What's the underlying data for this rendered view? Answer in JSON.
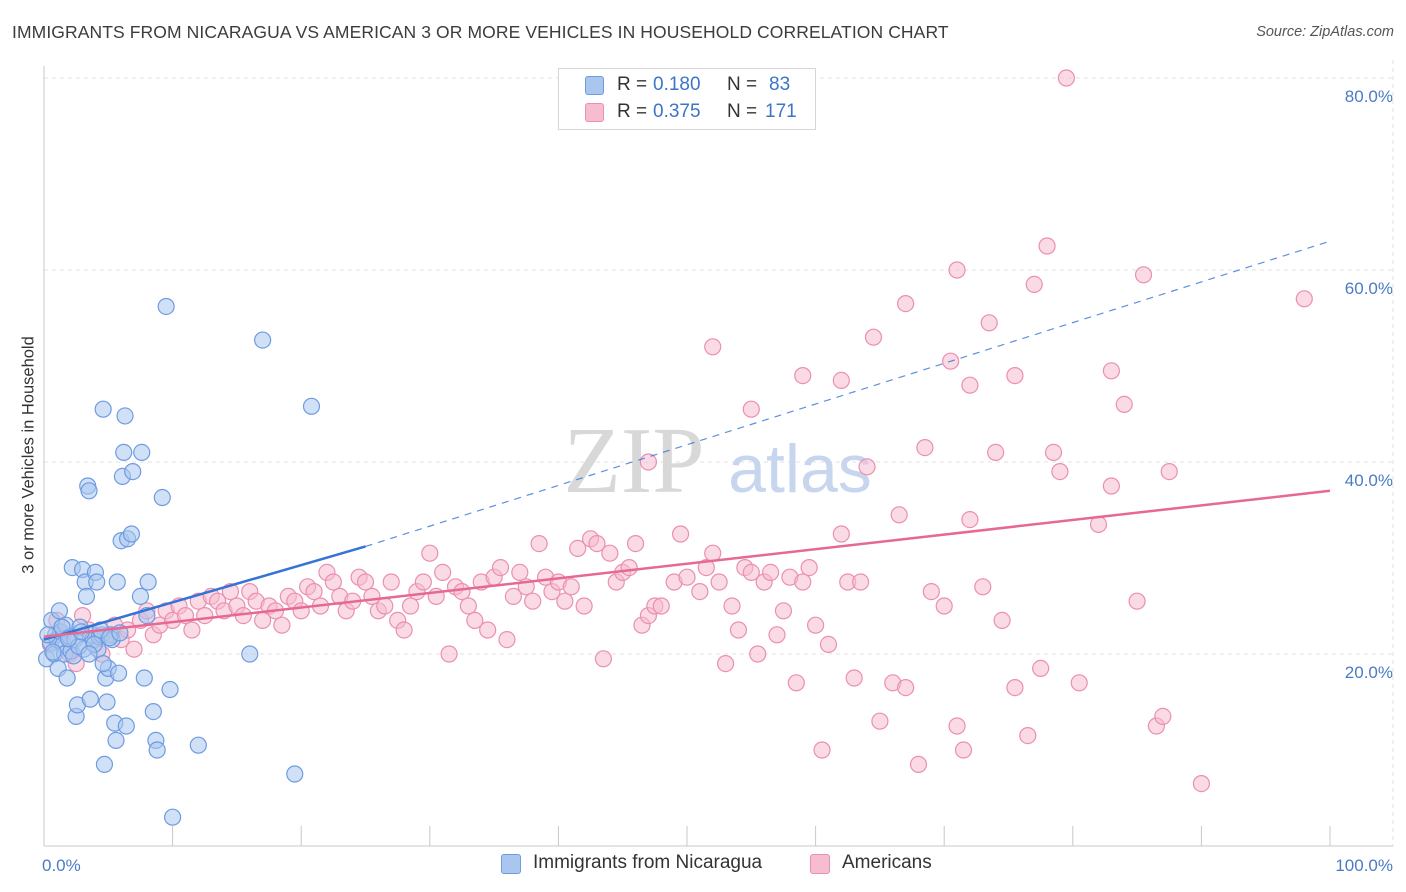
{
  "title": "IMMIGRANTS FROM NICARAGUA VS AMERICAN 3 OR MORE VEHICLES IN HOUSEHOLD CORRELATION CHART",
  "source": "Source: ZipAtlas.com",
  "watermark": {
    "zip": "ZIP",
    "atlas": "atlas"
  },
  "legend": {
    "rows": [
      {
        "r_label": "R =",
        "r_value": "0.180",
        "n_label": "N =",
        "n_value": "83"
      },
      {
        "r_label": "R =",
        "r_value": "0.375",
        "n_label": "N =",
        "n_value": "171"
      }
    ]
  },
  "bottom_legend": {
    "items": [
      {
        "label": "Immigrants from Nicaragua"
      },
      {
        "label": "Americans"
      }
    ]
  },
  "colors": {
    "blue_fill": "#a9c6ef",
    "blue_stroke": "#6f9be0",
    "blue_line": "#3574d4",
    "pink_fill": "#f6bcd0",
    "pink_stroke": "#eb8fb0",
    "pink_line": "#e66895",
    "tick_text": "#4a7cc5",
    "grid": "#e2e2e2"
  },
  "chart_data": {
    "type": "scatter",
    "title": "IMMIGRANTS FROM NICARAGUA VS AMERICAN 3 OR MORE VEHICLES IN HOUSEHOLD CORRELATION CHART",
    "xlabel": "",
    "ylabel": "3 or more Vehicles in Household",
    "xlim": [
      0,
      100
    ],
    "ylim": [
      0,
      80
    ],
    "x_tick_labels": [
      "0.0%",
      "100.0%"
    ],
    "y_tick_labels": [
      "20.0%",
      "40.0%",
      "60.0%",
      "80.0%"
    ],
    "y_ticks": [
      20,
      40,
      60,
      80
    ],
    "grid": true,
    "legend_position": "top-center",
    "series": [
      {
        "name": "Immigrants from Nicaragua",
        "r": 0.18,
        "n": 83,
        "trend": {
          "x0": 0,
          "y0": 21.5,
          "x1": 25,
          "y1": 31.2,
          "x_dash_end": 100,
          "y_dash_end": 63
        },
        "points": [
          [
            0.2,
            19.5
          ],
          [
            0.5,
            21.2
          ],
          [
            0.6,
            23.5
          ],
          [
            0.8,
            20.0
          ],
          [
            0.9,
            22.0
          ],
          [
            1.0,
            21.5
          ],
          [
            1.1,
            18.5
          ],
          [
            1.2,
            24.5
          ],
          [
            1.3,
            22.3
          ],
          [
            1.5,
            21.0
          ],
          [
            1.6,
            20.0
          ],
          [
            1.7,
            23.0
          ],
          [
            1.8,
            17.5
          ],
          [
            2.0,
            21.8
          ],
          [
            2.1,
            20.3
          ],
          [
            2.2,
            29.0
          ],
          [
            2.3,
            19.8
          ],
          [
            2.4,
            21.5
          ],
          [
            2.5,
            13.5
          ],
          [
            2.6,
            14.7
          ],
          [
            2.8,
            22.8
          ],
          [
            3.0,
            28.8
          ],
          [
            3.1,
            20.5
          ],
          [
            3.2,
            27.5
          ],
          [
            3.3,
            26.0
          ],
          [
            3.4,
            37.5
          ],
          [
            3.5,
            37.0
          ],
          [
            3.6,
            15.3
          ],
          [
            3.7,
            22.0
          ],
          [
            3.8,
            21.5
          ],
          [
            4.0,
            28.5
          ],
          [
            4.1,
            27.5
          ],
          [
            4.2,
            20.5
          ],
          [
            4.3,
            21.8
          ],
          [
            4.5,
            22.0
          ],
          [
            4.6,
            45.5
          ],
          [
            4.7,
            8.5
          ],
          [
            4.8,
            17.5
          ],
          [
            4.9,
            15.0
          ],
          [
            5.0,
            18.5
          ],
          [
            5.2,
            22.0
          ],
          [
            5.3,
            21.5
          ],
          [
            5.5,
            12.8
          ],
          [
            5.6,
            11.0
          ],
          [
            5.7,
            27.5
          ],
          [
            5.8,
            18.0
          ],
          [
            6.0,
            31.8
          ],
          [
            6.1,
            38.5
          ],
          [
            6.2,
            41.0
          ],
          [
            6.3,
            44.8
          ],
          [
            6.4,
            12.5
          ],
          [
            6.5,
            32.0
          ],
          [
            6.8,
            32.5
          ],
          [
            6.9,
            39.0
          ],
          [
            7.5,
            26.0
          ],
          [
            7.6,
            41.0
          ],
          [
            7.8,
            17.5
          ],
          [
            8.0,
            24.0
          ],
          [
            8.1,
            27.5
          ],
          [
            8.5,
            14.0
          ],
          [
            8.7,
            11.0
          ],
          [
            8.8,
            10.0
          ],
          [
            9.2,
            36.3
          ],
          [
            9.8,
            16.3
          ],
          [
            9.5,
            56.2
          ],
          [
            10.0,
            3.0
          ],
          [
            12.0,
            10.5
          ],
          [
            16.0,
            20.0
          ],
          [
            17.0,
            52.7
          ],
          [
            19.5,
            7.5
          ],
          [
            20.8,
            45.8
          ],
          [
            1.4,
            22.8
          ],
          [
            2.7,
            20.8
          ],
          [
            3.9,
            21.0
          ],
          [
            4.4,
            22.5
          ],
          [
            0.3,
            22.0
          ],
          [
            0.7,
            20.2
          ],
          [
            1.9,
            21.6
          ],
          [
            2.9,
            22.3
          ],
          [
            5.1,
            21.7
          ],
          [
            3.5,
            20.0
          ],
          [
            4.6,
            19.0
          ],
          [
            5.9,
            22.2
          ]
        ]
      },
      {
        "name": "Americans",
        "r": 0.375,
        "n": 171,
        "trend": {
          "x0": 0,
          "y0": 21.8,
          "x1": 100,
          "y1": 37.0
        },
        "points": [
          [
            0.5,
            21.0
          ],
          [
            1.0,
            23.5
          ],
          [
            1.5,
            22.0
          ],
          [
            2.0,
            20.0
          ],
          [
            2.5,
            19.0
          ],
          [
            3.0,
            24.0
          ],
          [
            3.5,
            22.5
          ],
          [
            4.0,
            21.5
          ],
          [
            4.5,
            20.0
          ],
          [
            5.0,
            22.0
          ],
          [
            5.5,
            23.0
          ],
          [
            6.0,
            21.5
          ],
          [
            6.5,
            22.5
          ],
          [
            7.0,
            20.5
          ],
          [
            7.5,
            23.5
          ],
          [
            8.0,
            24.5
          ],
          [
            8.5,
            22.0
          ],
          [
            9.0,
            23.0
          ],
          [
            9.5,
            24.5
          ],
          [
            10.0,
            23.5
          ],
          [
            10.5,
            25.0
          ],
          [
            11.0,
            24.0
          ],
          [
            11.5,
            22.5
          ],
          [
            12.0,
            25.5
          ],
          [
            12.5,
            24.0
          ],
          [
            13.0,
            26.0
          ],
          [
            13.5,
            25.5
          ],
          [
            14.0,
            24.5
          ],
          [
            14.5,
            26.5
          ],
          [
            15.0,
            25.0
          ],
          [
            15.5,
            24.0
          ],
          [
            16.0,
            26.5
          ],
          [
            16.5,
            25.5
          ],
          [
            17.0,
            23.5
          ],
          [
            17.5,
            25.0
          ],
          [
            18.0,
            24.5
          ],
          [
            18.5,
            23.0
          ],
          [
            19.0,
            26.0
          ],
          [
            19.5,
            25.5
          ],
          [
            20.0,
            24.5
          ],
          [
            20.5,
            27.0
          ],
          [
            21.0,
            26.5
          ],
          [
            21.5,
            25.0
          ],
          [
            22.0,
            28.5
          ],
          [
            22.5,
            27.5
          ],
          [
            23.0,
            26.0
          ],
          [
            23.5,
            24.5
          ],
          [
            24.0,
            25.5
          ],
          [
            24.5,
            28.0
          ],
          [
            25.0,
            27.5
          ],
          [
            25.5,
            26.0
          ],
          [
            26.0,
            24.5
          ],
          [
            26.5,
            25.0
          ],
          [
            27.0,
            27.5
          ],
          [
            27.5,
            23.5
          ],
          [
            28.0,
            22.5
          ],
          [
            28.5,
            25.0
          ],
          [
            29.0,
            26.5
          ],
          [
            29.5,
            27.5
          ],
          [
            30.0,
            30.5
          ],
          [
            30.5,
            26.0
          ],
          [
            31.0,
            28.5
          ],
          [
            31.5,
            20.0
          ],
          [
            32.0,
            27.0
          ],
          [
            32.5,
            26.5
          ],
          [
            33.0,
            25.0
          ],
          [
            33.5,
            23.5
          ],
          [
            34.0,
            27.5
          ],
          [
            34.5,
            22.5
          ],
          [
            35.0,
            28.0
          ],
          [
            35.5,
            29.0
          ],
          [
            36.0,
            21.5
          ],
          [
            36.5,
            26.0
          ],
          [
            37.0,
            28.5
          ],
          [
            37.5,
            27.0
          ],
          [
            38.0,
            25.5
          ],
          [
            38.5,
            31.5
          ],
          [
            39.0,
            28.0
          ],
          [
            39.5,
            26.5
          ],
          [
            40.0,
            27.5
          ],
          [
            40.5,
            25.5
          ],
          [
            41.0,
            27.0
          ],
          [
            41.5,
            31.0
          ],
          [
            42.0,
            25.0
          ],
          [
            42.5,
            32.0
          ],
          [
            43.0,
            31.5
          ],
          [
            43.5,
            19.5
          ],
          [
            44.0,
            30.5
          ],
          [
            44.5,
            27.5
          ],
          [
            45.0,
            28.5
          ],
          [
            45.5,
            29.0
          ],
          [
            46.0,
            31.5
          ],
          [
            46.5,
            23.0
          ],
          [
            47.0,
            24.0
          ],
          [
            47.5,
            25.0
          ],
          [
            48.0,
            25.0
          ],
          [
            49.0,
            27.5
          ],
          [
            49.5,
            32.5
          ],
          [
            50.0,
            28.0
          ],
          [
            51.0,
            26.5
          ],
          [
            51.5,
            29.0
          ],
          [
            52.0,
            30.5
          ],
          [
            52.5,
            27.5
          ],
          [
            53.0,
            19.0
          ],
          [
            53.5,
            25.0
          ],
          [
            54.0,
            22.5
          ],
          [
            54.5,
            29.0
          ],
          [
            55.0,
            28.5
          ],
          [
            55.5,
            20.0
          ],
          [
            56.0,
            27.5
          ],
          [
            56.5,
            28.5
          ],
          [
            57.0,
            22.0
          ],
          [
            57.5,
            24.5
          ],
          [
            58.0,
            28.0
          ],
          [
            58.5,
            17.0
          ],
          [
            59.0,
            27.5
          ],
          [
            59.5,
            29.0
          ],
          [
            60.0,
            23.0
          ],
          [
            60.5,
            10.0
          ],
          [
            61.0,
            21.0
          ],
          [
            62.0,
            32.5
          ],
          [
            62.5,
            27.5
          ],
          [
            63.0,
            17.5
          ],
          [
            63.5,
            27.5
          ],
          [
            64.0,
            39.5
          ],
          [
            65.0,
            13.0
          ],
          [
            66.0,
            17.0
          ],
          [
            66.5,
            34.5
          ],
          [
            67.0,
            16.5
          ],
          [
            68.0,
            8.5
          ],
          [
            69.0,
            26.5
          ],
          [
            70.0,
            25.0
          ],
          [
            71.0,
            12.5
          ],
          [
            71.5,
            10.0
          ],
          [
            72.0,
            34.0
          ],
          [
            73.0,
            27.0
          ],
          [
            74.5,
            23.5
          ],
          [
            75.5,
            16.5
          ],
          [
            76.5,
            11.5
          ],
          [
            77.5,
            18.5
          ],
          [
            78.5,
            41.0
          ],
          [
            79.0,
            39.0
          ],
          [
            80.5,
            17.0
          ],
          [
            82.0,
            33.5
          ],
          [
            83.0,
            37.5
          ],
          [
            85.0,
            25.5
          ],
          [
            86.5,
            12.5
          ],
          [
            87.0,
            13.5
          ],
          [
            87.5,
            39.0
          ],
          [
            90.0,
            6.5
          ],
          [
            52.0,
            52.0
          ],
          [
            55.0,
            45.5
          ],
          [
            59.0,
            49.0
          ],
          [
            62.0,
            48.5
          ],
          [
            64.5,
            53.0
          ],
          [
            67.0,
            56.5
          ],
          [
            68.5,
            41.5
          ],
          [
            70.5,
            50.5
          ],
          [
            71.0,
            60.0
          ],
          [
            72.0,
            48.0
          ],
          [
            73.5,
            54.5
          ],
          [
            74.0,
            41.0
          ],
          [
            75.5,
            49.0
          ],
          [
            77.0,
            58.5
          ],
          [
            78.0,
            62.5
          ],
          [
            79.5,
            80.0
          ],
          [
            83.0,
            49.5
          ],
          [
            84.0,
            46.0
          ],
          [
            85.5,
            59.5
          ],
          [
            98.0,
            57.0
          ],
          [
            47.0,
            40.0
          ]
        ]
      }
    ]
  }
}
